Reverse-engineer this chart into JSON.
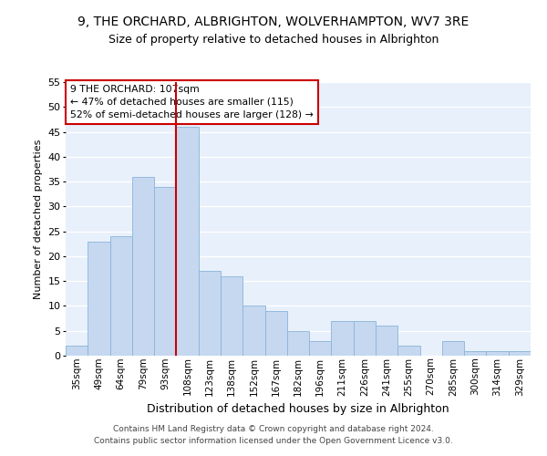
{
  "title": "9, THE ORCHARD, ALBRIGHTON, WOLVERHAMPTON, WV7 3RE",
  "subtitle": "Size of property relative to detached houses in Albrighton",
  "xlabel": "Distribution of detached houses by size in Albrighton",
  "ylabel": "Number of detached properties",
  "categories": [
    "35sqm",
    "49sqm",
    "64sqm",
    "79sqm",
    "93sqm",
    "108sqm",
    "123sqm",
    "138sqm",
    "152sqm",
    "167sqm",
    "182sqm",
    "196sqm",
    "211sqm",
    "226sqm",
    "241sqm",
    "255sqm",
    "270sqm",
    "285sqm",
    "300sqm",
    "314sqm",
    "329sqm"
  ],
  "values": [
    2,
    23,
    24,
    36,
    34,
    46,
    17,
    16,
    10,
    9,
    5,
    3,
    7,
    7,
    6,
    2,
    0,
    3,
    1,
    1,
    1
  ],
  "bar_color": "#c5d8f0",
  "bar_edge_color": "#8ab4d8",
  "highlight_index": 5,
  "highlight_line_color": "#cc0000",
  "ylim": [
    0,
    55
  ],
  "yticks": [
    0,
    5,
    10,
    15,
    20,
    25,
    30,
    35,
    40,
    45,
    50,
    55
  ],
  "annotation_text": "9 THE ORCHARD: 107sqm\n← 47% of detached houses are smaller (115)\n52% of semi-detached houses are larger (128) →",
  "annotation_box_color": "#ffffff",
  "annotation_box_edge": "#cc0000",
  "footer_line1": "Contains HM Land Registry data © Crown copyright and database right 2024.",
  "footer_line2": "Contains public sector information licensed under the Open Government Licence v3.0.",
  "background_color": "#e8f0fb",
  "grid_color": "#ffffff",
  "title_fontsize": 10,
  "subtitle_fontsize": 9,
  "ylabel_fontsize": 8,
  "xlabel_fontsize": 9
}
